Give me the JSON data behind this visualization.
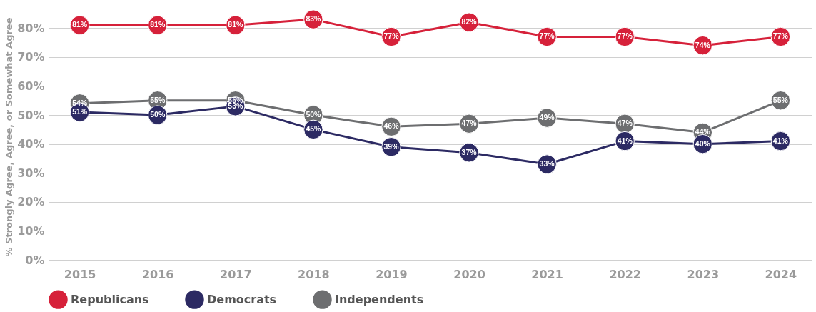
{
  "chart_data": {
    "type": "line",
    "ylabel": "% Strongly Agree, Agree, or Somewhat Agree",
    "categories": [
      "2015",
      "2016",
      "2017",
      "2018",
      "2019",
      "2020",
      "2021",
      "2022",
      "2023",
      "2024"
    ],
    "series": [
      {
        "name": "Republicans",
        "color": "#d6213a",
        "values": [
          81,
          81,
          81,
          83,
          77,
          82,
          77,
          77,
          74,
          77
        ],
        "value_labels": [
          "81%",
          "81%",
          "81%",
          "83%",
          "77%",
          "82%",
          "77%",
          "77%",
          "74%",
          "77%"
        ]
      },
      {
        "name": "Democrats",
        "color": "#2c2a63",
        "values": [
          51,
          50,
          53,
          45,
          39,
          37,
          33,
          41,
          40,
          41
        ],
        "value_labels": [
          "51%",
          "50%",
          "53%",
          "45%",
          "39%",
          "37%",
          "33%",
          "41%",
          "40%",
          "41%"
        ]
      },
      {
        "name": "Independents",
        "color": "#6d6e70",
        "values": [
          54,
          55,
          55,
          50,
          46,
          47,
          49,
          47,
          44,
          55
        ],
        "value_labels": [
          "54%",
          "55%",
          "55%",
          "50%",
          "46%",
          "47%",
          "49%",
          "47%",
          "44%",
          "55%"
        ]
      }
    ],
    "ylim": [
      0,
      85
    ],
    "yticks": [
      {
        "value": 0,
        "label": "0%"
      },
      {
        "value": 10,
        "label": "10%"
      },
      {
        "value": 20,
        "label": "20%"
      },
      {
        "value": 30,
        "label": "30%"
      },
      {
        "value": 40,
        "label": "40%"
      },
      {
        "value": 50,
        "label": "50%"
      },
      {
        "value": 60,
        "label": "60%"
      },
      {
        "value": 70,
        "label": "70%"
      },
      {
        "value": 80,
        "label": "80%"
      }
    ],
    "grid": "y",
    "legend": "bottom",
    "marker": "circle"
  }
}
